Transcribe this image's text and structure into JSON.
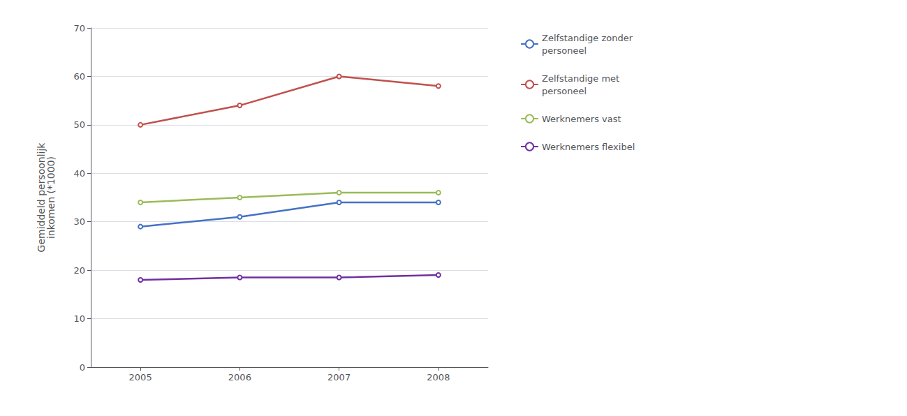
{
  "chart_data": {
    "type": "line",
    "ylabel": "Gemiddeld persoonlijk\ninkomen (*1000)",
    "x": [
      2005,
      2006,
      2007,
      2008
    ],
    "series": [
      {
        "name": "Zelfstandige zonder\npersoneel",
        "color": "#4472C4",
        "values": [
          29,
          31,
          34,
          34
        ]
      },
      {
        "name": "Zelfstandige met\npersoneel",
        "color": "#C0504D",
        "values": [
          50,
          54,
          60,
          58
        ]
      },
      {
        "name": "Werknemers vast",
        "color": "#9BBB59",
        "values": [
          34,
          35,
          36,
          36
        ]
      },
      {
        "name": "Werknemers flexibel",
        "color": "#7030A0",
        "values": [
          18,
          18.5,
          18.5,
          19
        ]
      }
    ],
    "xlim": [
      2004.5,
      2008.5
    ],
    "xticks": [
      2005,
      2006,
      2007,
      2008
    ],
    "ylim": [
      0,
      70
    ],
    "yticks": [
      0,
      10,
      20,
      30,
      40,
      50,
      60,
      70
    ],
    "grid": true,
    "legend": "right"
  }
}
